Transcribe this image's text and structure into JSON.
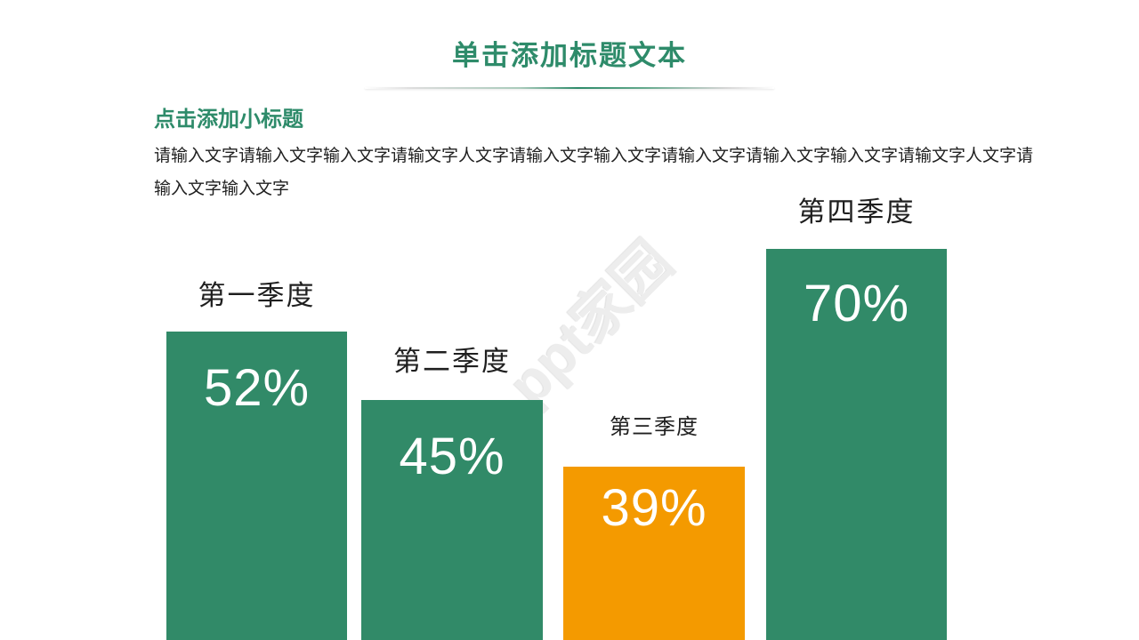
{
  "page": {
    "title": "单击添加标题文本",
    "subtitle": "点击添加小标题",
    "body_text": "请输入文字请输入文字输入文字请输文字人文字请输入文字输入文字请输入文字请输入文字输入文字请输文字人文字请输入文字输入文字",
    "watermark": "ppt家园"
  },
  "colors": {
    "heading_green": "#2e8b6a",
    "bar_green": "#318a68",
    "bar_orange": "#f49a00",
    "label_text": "#1f1f1f",
    "percent_text": "#ffffff",
    "watermark_gray": "#ededed"
  },
  "chart_data": {
    "type": "bar",
    "categories": [
      "第一季度",
      "第二季度",
      "第三季度",
      "第四季度"
    ],
    "values": [
      52,
      45,
      39,
      70
    ],
    "value_labels": [
      "52%",
      "45%",
      "39%",
      "70%"
    ],
    "unit": "%",
    "bar_colors": [
      "#318a68",
      "#318a68",
      "#f49a00",
      "#318a68"
    ],
    "title": "",
    "xlabel": "",
    "ylabel": "",
    "grid": false,
    "legend": false,
    "layout_note": "decorative staircase bars, value labels inside bars, category labels above bars"
  }
}
